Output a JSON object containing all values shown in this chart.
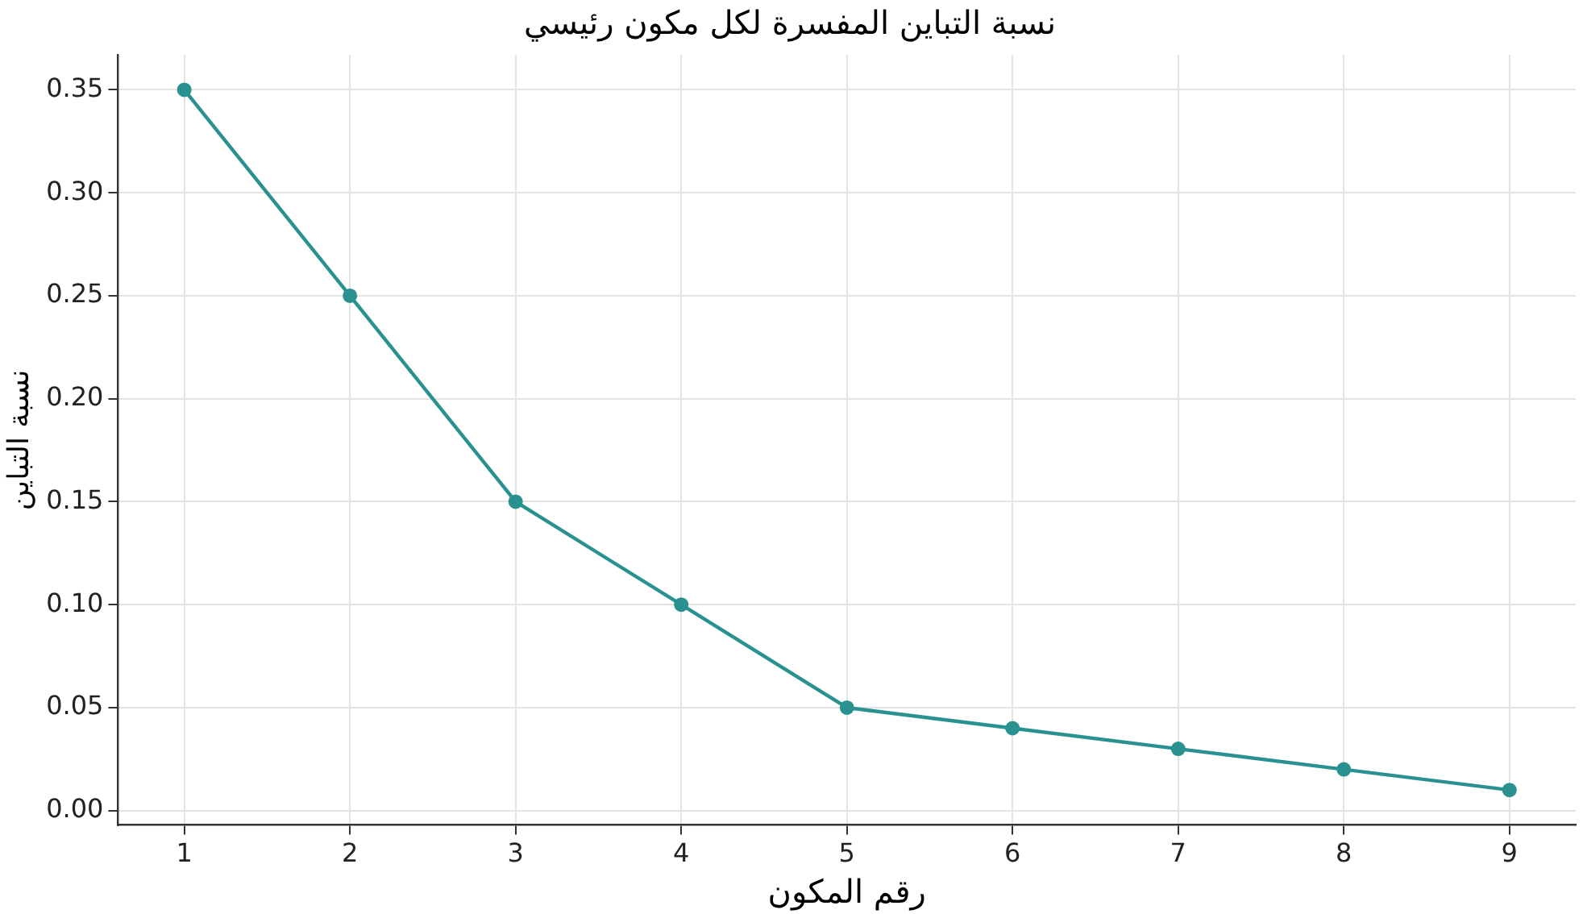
{
  "chart_data": {
    "type": "line",
    "title": "نسبة التباين المفسرة لكل مكون رئيسي",
    "xlabel": "رقم المكون",
    "ylabel": "نسبة التباين",
    "x": [
      1,
      2,
      3,
      4,
      5,
      6,
      7,
      8,
      9
    ],
    "series": [
      {
        "color": "#2a9191",
        "values": [
          0.35,
          0.25,
          0.15,
          0.1,
          0.05,
          0.04,
          0.03,
          0.02,
          0.01
        ]
      }
    ],
    "xlim": [
      0.6,
      9.4
    ],
    "xticks": [
      1,
      2,
      3,
      4,
      5,
      6,
      7,
      8,
      9
    ],
    "ylim": [
      -0.007,
      0.367
    ],
    "yticks": [
      {
        "value": 0,
        "label": "0.00"
      },
      {
        "value": 0.05,
        "label": "0.05"
      },
      {
        "value": 0.1,
        "label": "0.10"
      },
      {
        "value": 0.15,
        "label": "0.15"
      },
      {
        "value": 0.2,
        "label": "0.20"
      },
      {
        "value": 0.25,
        "label": "0.25"
      },
      {
        "value": 0.3,
        "label": "0.30"
      },
      {
        "value": 0.35,
        "label": "0.35"
      }
    ],
    "grid": true,
    "legend": false,
    "marker": "circle",
    "line_style": "solid"
  }
}
